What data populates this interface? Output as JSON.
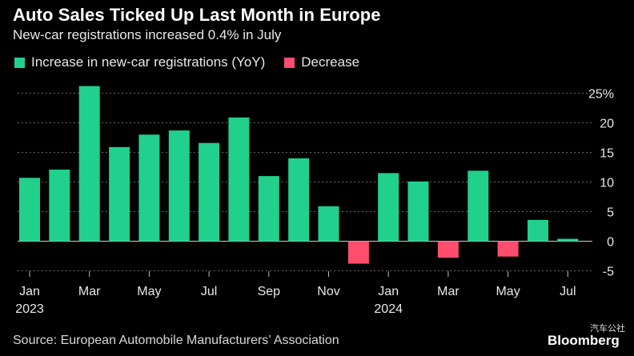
{
  "title": "Auto Sales Ticked Up Last Month in Europe",
  "subtitle": "New-car registrations increased 0.4% in July",
  "legend": {
    "increase_label": "Increase in new-car registrations (YoY)",
    "decrease_label": "Decrease"
  },
  "colors": {
    "increase": "#20d08c",
    "decrease": "#ff4d6d",
    "grid": "#666666",
    "background": "#000000"
  },
  "source": "Source: European Automobile Manufacturers’ Association",
  "brand": "Bloomberg",
  "watermark": "汽车公社",
  "chart_data": {
    "type": "bar",
    "categories": [
      "2023-01",
      "2023-02",
      "2023-03",
      "2023-04",
      "2023-05",
      "2023-06",
      "2023-07",
      "2023-08",
      "2023-09",
      "2023-10",
      "2023-11",
      "2023-12",
      "2024-01",
      "2024-02",
      "2024-03",
      "2024-04",
      "2024-05",
      "2024-06",
      "2024-07"
    ],
    "values": [
      10.7,
      12.1,
      26.2,
      15.9,
      18.0,
      18.7,
      16.6,
      20.9,
      11.0,
      14.0,
      5.9,
      -3.8,
      11.5,
      10.1,
      -2.8,
      11.9,
      -2.6,
      3.6,
      0.4
    ],
    "tick_labels": [
      "Jan",
      "Mar",
      "May",
      "Jul",
      "Sep",
      "Nov",
      "Jan",
      "Mar",
      "May",
      "Jul"
    ],
    "tick_indices": [
      0,
      2,
      4,
      6,
      8,
      10,
      12,
      14,
      16,
      18
    ],
    "year_labels": [
      "2023",
      "2024"
    ],
    "year_indices": [
      0,
      12
    ],
    "y_ticks": [
      "25%",
      "20",
      "15",
      "10",
      "5",
      "0",
      "-5"
    ],
    "y_tick_values": [
      25,
      20,
      15,
      10,
      5,
      0,
      -5
    ],
    "ylim": [
      -5,
      25
    ],
    "grid": true,
    "legend_position": "top-left"
  }
}
